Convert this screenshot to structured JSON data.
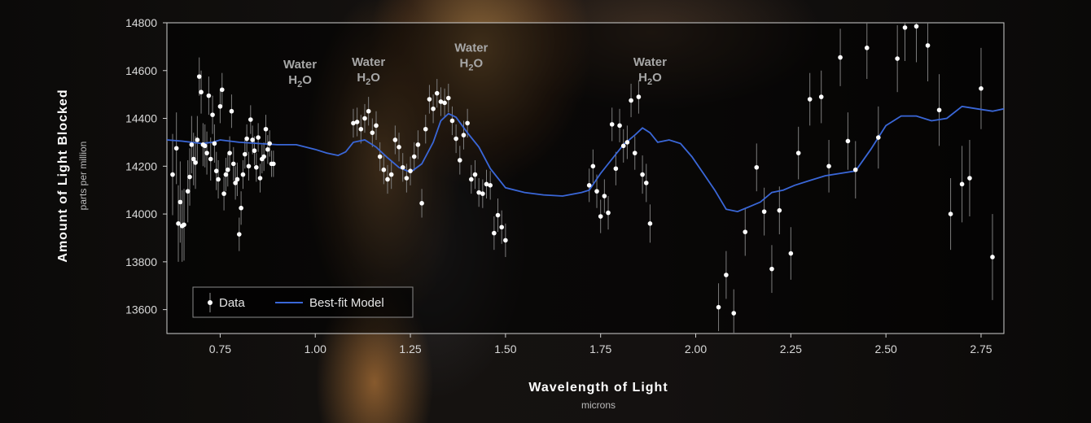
{
  "chart_data": {
    "type": "scatter",
    "title": "",
    "xlabel": "Wavelength of Light",
    "xunit": "microns",
    "ylabel": "Amount of Light Blocked",
    "yunit": "parts per million",
    "xlim": [
      0.61,
      2.81
    ],
    "ylim": [
      13500,
      14800
    ],
    "xticks": [
      "0.75",
      "1.00",
      "1.25",
      "1.50",
      "1.75",
      "2.00",
      "2.25",
      "2.50",
      "2.75"
    ],
    "yticks": [
      "13600",
      "13800",
      "14000",
      "14200",
      "14400",
      "14600",
      "14800"
    ],
    "legend": {
      "position": "bottom-left",
      "entries": [
        "Data",
        "Best-fit Model"
      ]
    },
    "annotations": [
      {
        "label": "Water",
        "formula": "H",
        "subscript": "2",
        "suffix": "O",
        "x": 0.96,
        "y": 14610
      },
      {
        "label": "Water",
        "formula": "H",
        "subscript": "2",
        "suffix": "O",
        "x": 1.14,
        "y": 14620
      },
      {
        "label": "Water",
        "formula": "H",
        "subscript": "2",
        "suffix": "O",
        "x": 1.41,
        "y": 14680
      },
      {
        "label": "Water",
        "formula": "H",
        "subscript": "2",
        "suffix": "O",
        "x": 1.88,
        "y": 14620
      }
    ],
    "series": [
      {
        "name": "Data",
        "points": [
          [
            0.625,
            14165,
            170
          ],
          [
            0.635,
            14275,
            150
          ],
          [
            0.64,
            13960,
            160
          ],
          [
            0.645,
            14050,
            170
          ],
          [
            0.65,
            13950,
            150
          ],
          [
            0.655,
            13955,
            150
          ],
          [
            0.665,
            14095,
            130
          ],
          [
            0.67,
            14155,
            120
          ],
          [
            0.675,
            14290,
            120
          ],
          [
            0.68,
            14230,
            110
          ],
          [
            0.685,
            14215,
            110
          ],
          [
            0.69,
            14310,
            100
          ],
          [
            0.695,
            14575,
            80
          ],
          [
            0.7,
            14510,
            90
          ],
          [
            0.705,
            14290,
            90
          ],
          [
            0.71,
            14285,
            90
          ],
          [
            0.715,
            14255,
            90
          ],
          [
            0.72,
            14495,
            80
          ],
          [
            0.725,
            14230,
            90
          ],
          [
            0.73,
            14415,
            80
          ],
          [
            0.735,
            14295,
            80
          ],
          [
            0.74,
            14180,
            80
          ],
          [
            0.745,
            14145,
            80
          ],
          [
            0.75,
            14450,
            70
          ],
          [
            0.755,
            14520,
            70
          ],
          [
            0.76,
            14085,
            70
          ],
          [
            0.765,
            14165,
            70
          ],
          [
            0.77,
            14185,
            70
          ],
          [
            0.775,
            14255,
            70
          ],
          [
            0.78,
            14430,
            70
          ],
          [
            0.785,
            14210,
            70
          ],
          [
            0.79,
            14130,
            70
          ],
          [
            0.795,
            14145,
            70
          ],
          [
            0.8,
            13915,
            70
          ],
          [
            0.805,
            14025,
            70
          ],
          [
            0.81,
            14165,
            60
          ],
          [
            0.815,
            14250,
            60
          ],
          [
            0.82,
            14315,
            60
          ],
          [
            0.825,
            14200,
            60
          ],
          [
            0.83,
            14395,
            60
          ],
          [
            0.835,
            14310,
            60
          ],
          [
            0.84,
            14265,
            60
          ],
          [
            0.845,
            14195,
            60
          ],
          [
            0.85,
            14320,
            60
          ],
          [
            0.855,
            14150,
            60
          ],
          [
            0.86,
            14230,
            60
          ],
          [
            0.865,
            14240,
            60
          ],
          [
            0.87,
            14355,
            60
          ],
          [
            0.875,
            14270,
            60
          ],
          [
            0.88,
            14295,
            55
          ],
          [
            0.885,
            14210,
            55
          ],
          [
            0.89,
            14210,
            55
          ],
          [
            1.1,
            14380,
            60
          ],
          [
            1.11,
            14385,
            60
          ],
          [
            1.12,
            14355,
            60
          ],
          [
            1.13,
            14400,
            60
          ],
          [
            1.14,
            14430,
            60
          ],
          [
            1.15,
            14340,
            60
          ],
          [
            1.16,
            14370,
            60
          ],
          [
            1.17,
            14240,
            60
          ],
          [
            1.18,
            14185,
            60
          ],
          [
            1.19,
            14145,
            60
          ],
          [
            1.2,
            14165,
            60
          ],
          [
            1.21,
            14310,
            60
          ],
          [
            1.22,
            14280,
            60
          ],
          [
            1.23,
            14195,
            60
          ],
          [
            1.24,
            14150,
            60
          ],
          [
            1.25,
            14180,
            60
          ],
          [
            1.26,
            14240,
            60
          ],
          [
            1.27,
            14290,
            60
          ],
          [
            1.28,
            14045,
            60
          ],
          [
            1.29,
            14355,
            60
          ],
          [
            1.3,
            14480,
            60
          ],
          [
            1.31,
            14440,
            60
          ],
          [
            1.32,
            14505,
            60
          ],
          [
            1.33,
            14470,
            60
          ],
          [
            1.34,
            14465,
            60
          ],
          [
            1.35,
            14485,
            60
          ],
          [
            1.36,
            14390,
            60
          ],
          [
            1.37,
            14315,
            60
          ],
          [
            1.38,
            14225,
            60
          ],
          [
            1.39,
            14330,
            60
          ],
          [
            1.4,
            14380,
            60
          ],
          [
            1.41,
            14145,
            60
          ],
          [
            1.42,
            14165,
            60
          ],
          [
            1.43,
            14090,
            60
          ],
          [
            1.44,
            14085,
            60
          ],
          [
            1.45,
            14125,
            60
          ],
          [
            1.46,
            14120,
            60
          ],
          [
            1.47,
            13920,
            70
          ],
          [
            1.48,
            13995,
            70
          ],
          [
            1.49,
            13945,
            70
          ],
          [
            1.5,
            13890,
            70
          ],
          [
            1.72,
            14120,
            70
          ],
          [
            1.73,
            14200,
            70
          ],
          [
            1.74,
            14095,
            70
          ],
          [
            1.75,
            13990,
            70
          ],
          [
            1.76,
            14075,
            70
          ],
          [
            1.77,
            14005,
            70
          ],
          [
            1.78,
            14375,
            70
          ],
          [
            1.79,
            14190,
            70
          ],
          [
            1.8,
            14370,
            70
          ],
          [
            1.81,
            14285,
            70
          ],
          [
            1.82,
            14300,
            70
          ],
          [
            1.83,
            14475,
            70
          ],
          [
            1.84,
            14255,
            70
          ],
          [
            1.85,
            14490,
            70
          ],
          [
            1.86,
            14165,
            80
          ],
          [
            1.87,
            14130,
            80
          ],
          [
            1.88,
            13960,
            80
          ],
          [
            2.06,
            13610,
            100
          ],
          [
            2.08,
            13745,
            100
          ],
          [
            2.1,
            13585,
            100
          ],
          [
            2.13,
            13925,
            100
          ],
          [
            2.16,
            14195,
            100
          ],
          [
            2.18,
            14010,
            100
          ],
          [
            2.2,
            13770,
            100
          ],
          [
            2.22,
            14015,
            100
          ],
          [
            2.25,
            13835,
            110
          ],
          [
            2.27,
            14255,
            110
          ],
          [
            2.3,
            14480,
            110
          ],
          [
            2.33,
            14490,
            110
          ],
          [
            2.35,
            14200,
            110
          ],
          [
            2.38,
            14655,
            120
          ],
          [
            2.4,
            14305,
            120
          ],
          [
            2.42,
            14185,
            120
          ],
          [
            2.45,
            14695,
            130
          ],
          [
            2.48,
            14320,
            130
          ],
          [
            2.53,
            14650,
            140
          ],
          [
            2.55,
            14780,
            140
          ],
          [
            2.58,
            14785,
            150
          ],
          [
            2.61,
            14705,
            150
          ],
          [
            2.64,
            14435,
            150
          ],
          [
            2.67,
            14000,
            150
          ],
          [
            2.7,
            14125,
            160
          ],
          [
            2.72,
            14150,
            160
          ],
          [
            2.75,
            14525,
            170
          ],
          [
            2.78,
            13820,
            180
          ]
        ]
      },
      {
        "name": "Best-fit Model",
        "x": [
          0.61,
          0.65,
          0.7,
          0.73,
          0.75,
          0.8,
          0.85,
          0.9,
          0.95,
          1.0,
          1.03,
          1.06,
          1.08,
          1.1,
          1.13,
          1.16,
          1.19,
          1.22,
          1.25,
          1.28,
          1.31,
          1.33,
          1.35,
          1.37,
          1.4,
          1.43,
          1.46,
          1.5,
          1.55,
          1.6,
          1.65,
          1.7,
          1.72,
          1.75,
          1.78,
          1.81,
          1.84,
          1.86,
          1.88,
          1.9,
          1.93,
          1.96,
          1.99,
          2.02,
          2.05,
          2.08,
          2.11,
          2.14,
          2.17,
          2.2,
          2.23,
          2.26,
          2.3,
          2.34,
          2.38,
          2.42,
          2.46,
          2.5,
          2.54,
          2.58,
          2.62,
          2.66,
          2.7,
          2.74,
          2.78,
          2.81
        ],
        "values": [
          14310,
          14305,
          14295,
          14300,
          14310,
          14300,
          14295,
          14290,
          14290,
          14270,
          14255,
          14245,
          14260,
          14300,
          14310,
          14280,
          14235,
          14195,
          14175,
          14210,
          14300,
          14390,
          14420,
          14405,
          14340,
          14280,
          14190,
          14110,
          14090,
          14080,
          14075,
          14090,
          14100,
          14170,
          14230,
          14290,
          14330,
          14360,
          14340,
          14300,
          14310,
          14295,
          14240,
          14170,
          14100,
          14020,
          14010,
          14030,
          14050,
          14090,
          14100,
          14120,
          14140,
          14160,
          14170,
          14180,
          14270,
          14370,
          14410,
          14410,
          14390,
          14400,
          14450,
          14440,
          14430,
          14440
        ]
      }
    ]
  }
}
